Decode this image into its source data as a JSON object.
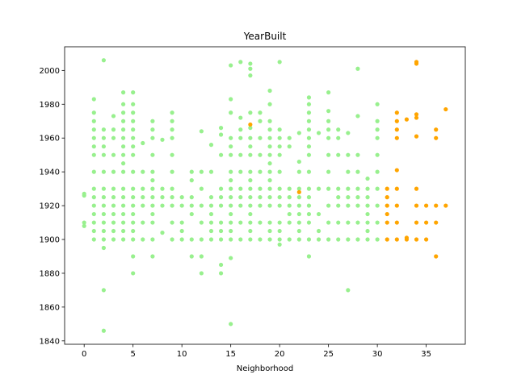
{
  "chart_data": {
    "type": "scatter",
    "title": "YearBuilt",
    "xlabel": "Neighborhood",
    "ylabel": "",
    "xlim": [
      -2,
      39
    ],
    "ylim": [
      1838,
      2014
    ],
    "x_ticks": [
      0,
      5,
      10,
      15,
      20,
      25,
      30,
      35
    ],
    "y_ticks": [
      1840,
      1860,
      1880,
      1900,
      1920,
      1940,
      1960,
      1980,
      2000
    ],
    "grid": false,
    "legend": "none",
    "series": [
      {
        "color": "#98f08e",
        "columns": [
          {
            "x": 0,
            "y": [
              1910,
              1908,
              1926,
              1927
            ]
          },
          {
            "x": 1,
            "y": [
              1900,
              1905,
              1910,
              1915,
              1920,
              1925,
              1930,
              1940,
              1950,
              1955,
              1960,
              1965,
              1970,
              1975,
              1983
            ]
          },
          {
            "x": 2,
            "y": [
              1846,
              1870,
              1895,
              1900,
              1905,
              1910,
              1915,
              1920,
              1925,
              1930,
              1940,
              1950,
              1955,
              1960,
              1965,
              2006
            ]
          },
          {
            "x": 3,
            "y": [
              1900,
              1905,
              1910,
              1915,
              1920,
              1925,
              1930,
              1940,
              1950,
              1960,
              1965,
              1973
            ]
          },
          {
            "x": 4,
            "y": [
              1900,
              1905,
              1910,
              1915,
              1920,
              1925,
              1930,
              1940,
              1945,
              1950,
              1955,
              1960,
              1965,
              1970,
              1975,
              1980,
              1987
            ]
          },
          {
            "x": 5,
            "y": [
              1880,
              1890,
              1900,
              1905,
              1910,
              1915,
              1920,
              1925,
              1930,
              1940,
              1950,
              1955,
              1960,
              1965,
              1970,
              1975,
              1980,
              1987
            ]
          },
          {
            "x": 6,
            "y": [
              1900,
              1910,
              1920,
              1925,
              1930,
              1940,
              1957
            ]
          },
          {
            "x": 7,
            "y": [
              1890,
              1900,
              1910,
              1915,
              1920,
              1925,
              1930,
              1935,
              1940,
              1950,
              1960,
              1965,
              1970
            ]
          },
          {
            "x": 8,
            "y": [
              1904,
              1920,
              1925,
              1930,
              1959
            ]
          },
          {
            "x": 9,
            "y": [
              1900,
              1910,
              1920,
              1925,
              1930,
              1940,
              1950,
              1960,
              1965,
              1970,
              1975
            ]
          },
          {
            "x": 10,
            "y": [
              1900,
              1905,
              1910,
              1920,
              1925
            ]
          },
          {
            "x": 11,
            "y": [
              1890,
              1900,
              1915,
              1920,
              1925,
              1935,
              1940
            ]
          },
          {
            "x": 12,
            "y": [
              1880,
              1890,
              1900,
              1910,
              1920,
              1930,
              1940,
              1964
            ]
          },
          {
            "x": 13,
            "y": [
              1900,
              1905,
              1910,
              1915,
              1920,
              1925,
              1940,
              1956
            ]
          },
          {
            "x": 14,
            "y": [
              1880,
              1885,
              1900,
              1905,
              1910,
              1920,
              1925,
              1930,
              1950,
              1962,
              1966
            ]
          },
          {
            "x": 15,
            "y": [
              1850,
              1889,
              1900,
              1905,
              1910,
              1915,
              1920,
              1925,
              1930,
              1935,
              1940,
              1950,
              1955,
              1960,
              1975,
              1983,
              2003
            ]
          },
          {
            "x": 16,
            "y": [
              1900,
              1910,
              1920,
              1925,
              1930,
              1940,
              1950,
              1960,
              1965,
              1972,
              2005
            ]
          },
          {
            "x": 17,
            "y": [
              1900,
              1905,
              1910,
              1915,
              1920,
              1925,
              1930,
              1935,
              1940,
              1950,
              1955,
              1960,
              1966,
              1975,
              1997,
              2001,
              2004
            ]
          },
          {
            "x": 18,
            "y": [
              1900,
              1910,
              1920,
              1925,
              1930,
              1940,
              1950,
              1960,
              1970,
              1975
            ]
          },
          {
            "x": 19,
            "y": [
              1900,
              1905,
              1910,
              1920,
              1925,
              1930,
              1935,
              1940,
              1945,
              1950,
              1955,
              1960,
              1965,
              1970,
              1980,
              1988
            ]
          },
          {
            "x": 20,
            "y": [
              1897,
              1900,
              1905,
              1910,
              1920,
              1925,
              1930,
              1940,
              1950,
              1955,
              1960,
              1965,
              2005
            ]
          },
          {
            "x": 21,
            "y": [
              1900,
              1910,
              1915,
              1920,
              1925,
              1930,
              1955,
              1960
            ]
          },
          {
            "x": 22,
            "y": [
              1900,
              1905,
              1910,
              1915,
              1920,
              1925,
              1930,
              1940,
              1946,
              1963
            ]
          },
          {
            "x": 23,
            "y": [
              1890,
              1900,
              1910,
              1915,
              1920,
              1925,
              1930,
              1940,
              1950,
              1955,
              1960,
              1965,
              1970,
              1975,
              1980,
              1984
            ]
          },
          {
            "x": 24,
            "y": [
              1900,
              1905,
              1915,
              1930,
              1963
            ]
          },
          {
            "x": 25,
            "y": [
              1900,
              1910,
              1920,
              1930,
              1940,
              1950,
              1960,
              1965,
              1970,
              1976,
              1987
            ]
          },
          {
            "x": 26,
            "y": [
              1900,
              1910,
              1920,
              1925,
              1930,
              1950,
              1960,
              1965
            ]
          },
          {
            "x": 27,
            "y": [
              1870,
              1900,
              1910,
              1920,
              1925,
              1930,
              1940,
              1950,
              1963
            ]
          },
          {
            "x": 28,
            "y": [
              1900,
              1910,
              1920,
              1925,
              1930,
              1940,
              1950,
              1973,
              2001
            ]
          },
          {
            "x": 29,
            "y": [
              1900,
              1905,
              1910,
              1915,
              1920,
              1925,
              1930,
              1936
            ]
          },
          {
            "x": 30,
            "y": [
              1900,
              1910,
              1920,
              1930,
              1940,
              1950,
              1960,
              1965,
              1970,
              1980
            ]
          }
        ]
      },
      {
        "color": "#ffa500",
        "columns": [
          {
            "x": 17,
            "y": [
              1968
            ]
          },
          {
            "x": 22,
            "y": [
              1928
            ]
          },
          {
            "x": 31,
            "y": [
              1900,
              1910,
              1915,
              1920,
              1925,
              1930
            ]
          },
          {
            "x": 32,
            "y": [
              1900,
              1910,
              1920,
              1930,
              1941,
              1960,
              1965,
              1970,
              1975
            ]
          },
          {
            "x": 33,
            "y": [
              1900,
              1901,
              1971
            ]
          },
          {
            "x": 34,
            "y": [
              1900,
              1910,
              1920,
              1930,
              1961,
              1972,
              1974,
              2004,
              2005
            ]
          },
          {
            "x": 35,
            "y": [
              1900,
              1910,
              1920
            ]
          },
          {
            "x": 36,
            "y": [
              1890,
              1910,
              1920,
              1960,
              1965
            ]
          },
          {
            "x": 37,
            "y": [
              1920,
              1977
            ]
          }
        ]
      }
    ]
  }
}
